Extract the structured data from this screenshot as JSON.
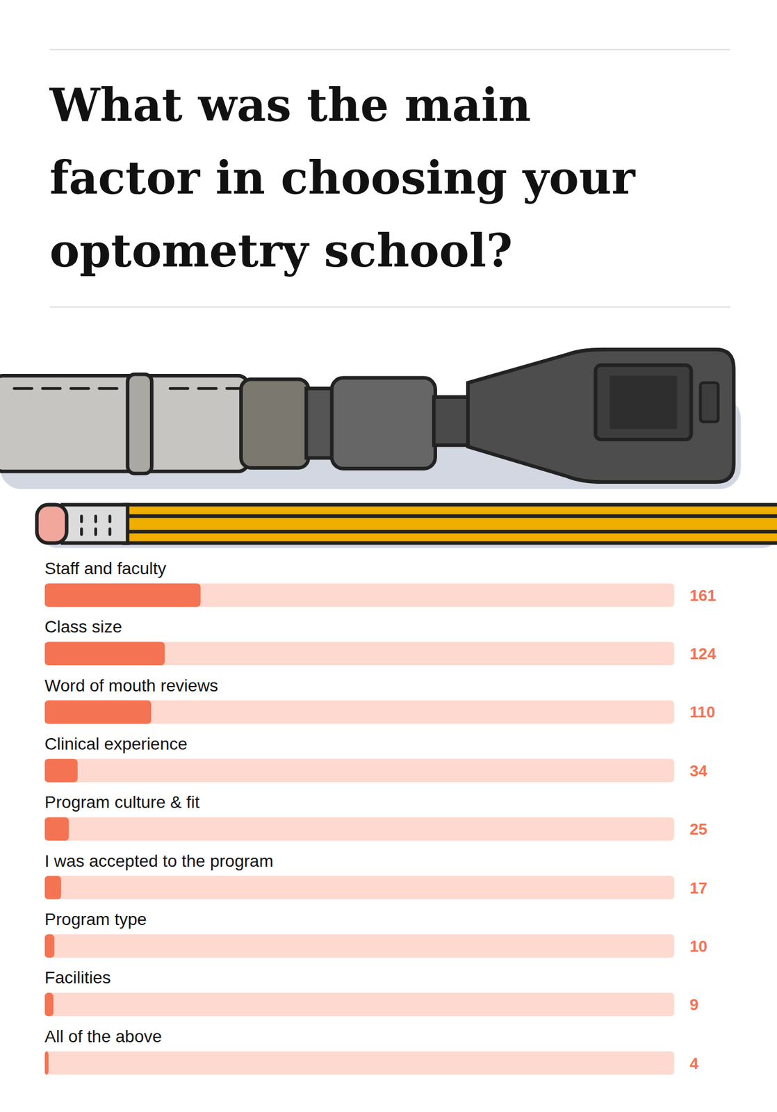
{
  "chart_data": {
    "type": "bar",
    "title": "What was the main\nfactor in choosing your\noptometry school?",
    "orientation": "horizontal",
    "categories": [
      "Staff and faculty",
      "Class size",
      "Word of mouth reviews",
      "Clinical experience",
      "Program culture & fit",
      "I was accepted to the program",
      "Program type",
      "Facilities",
      "All of the above"
    ],
    "values": [
      161,
      124,
      110,
      34,
      25,
      17,
      10,
      9,
      4
    ],
    "color": "#f47352",
    "xlim": [
      0,
      650
    ],
    "data_labels": true,
    "tick_labels": false,
    "grid": false
  }
}
